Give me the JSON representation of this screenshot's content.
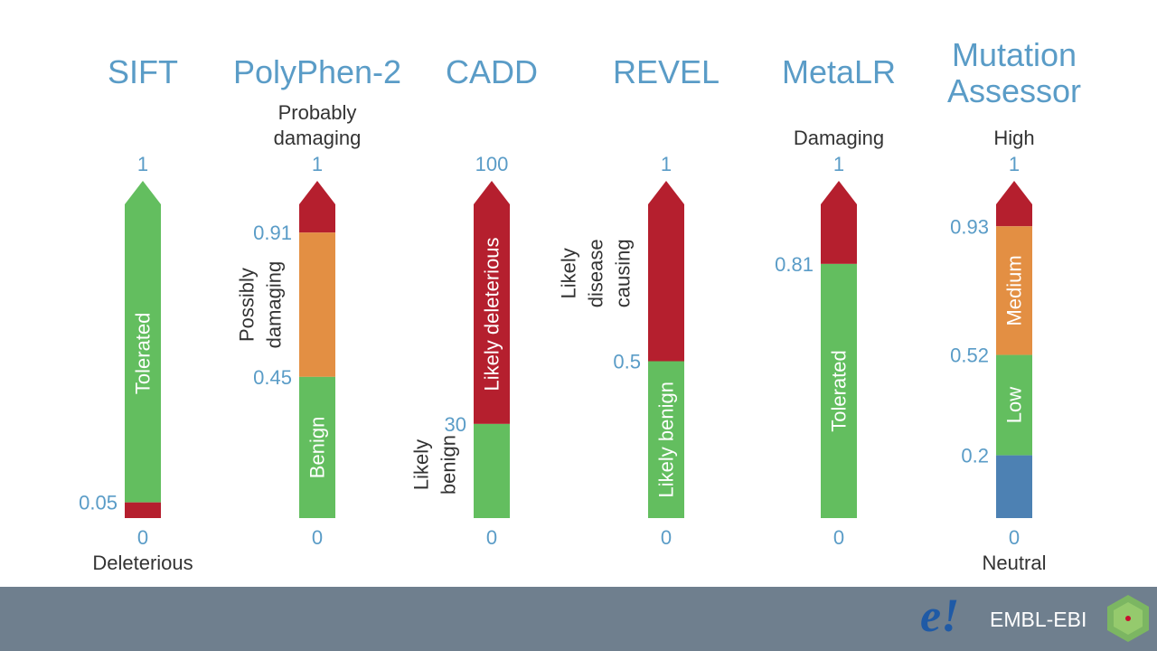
{
  "colors": {
    "title": "#5a9cc7",
    "tick": "#5a9cc7",
    "text": "#333333",
    "green": "#63be5f",
    "red": "#b51f2e",
    "orange": "#e38f43",
    "blue": "#4d81b3",
    "footer": "#6f7f8e"
  },
  "tools": [
    {
      "id": "sift",
      "title": [
        "SIFT"
      ],
      "top_label": [],
      "bottom_label": "Deleterious",
      "ticks": [
        {
          "value": 1,
          "label": "1"
        },
        {
          "value": 0.05,
          "label": "0.05"
        },
        {
          "value": 0,
          "label": "0"
        }
      ],
      "segments": [
        {
          "from": 0.05,
          "to": 1,
          "color": "green",
          "label": "Tolerated"
        },
        {
          "from": 0,
          "to": 0.05,
          "color": "red",
          "label": ""
        }
      ],
      "side_labels": []
    },
    {
      "id": "polyphen",
      "title": [
        "PolyPhen-2"
      ],
      "top_label": [
        "Probably",
        "damaging"
      ],
      "bottom_label": "",
      "ticks": [
        {
          "value": 1,
          "label": "1"
        },
        {
          "value": 0.91,
          "label": "0.91"
        },
        {
          "value": 0.45,
          "label": "0.45"
        },
        {
          "value": 0,
          "label": "0"
        }
      ],
      "segments": [
        {
          "from": 0.91,
          "to": 1,
          "color": "red",
          "label": ""
        },
        {
          "from": 0.45,
          "to": 0.91,
          "color": "orange",
          "label": ""
        },
        {
          "from": 0,
          "to": 0.45,
          "color": "green",
          "label": "Benign"
        }
      ],
      "side_labels": [
        {
          "lines": [
            "Possibly",
            "damaging"
          ],
          "center_value": 0.68
        }
      ]
    },
    {
      "id": "cadd",
      "title": [
        "CADD"
      ],
      "top_label": [],
      "bottom_label": "",
      "ticks": [
        {
          "value": 1,
          "label": "100"
        },
        {
          "value": 0.3,
          "label": "30"
        },
        {
          "value": 0,
          "label": "0"
        }
      ],
      "segments": [
        {
          "from": 0.3,
          "to": 1,
          "color": "red",
          "label": "Likely deleterious"
        },
        {
          "from": 0,
          "to": 0.3,
          "color": "green",
          "label": ""
        }
      ],
      "side_labels": [
        {
          "lines": [
            "Likely",
            "benign"
          ],
          "center_value": 0.17
        }
      ]
    },
    {
      "id": "revel",
      "title": [
        "REVEL"
      ],
      "top_label": [],
      "bottom_label": "",
      "ticks": [
        {
          "value": 1,
          "label": "1"
        },
        {
          "value": 0.5,
          "label": "0.5"
        },
        {
          "value": 0,
          "label": "0"
        }
      ],
      "segments": [
        {
          "from": 0.5,
          "to": 1,
          "color": "red",
          "label": ""
        },
        {
          "from": 0,
          "to": 0.5,
          "color": "green",
          "label": "Likely benign"
        }
      ],
      "side_labels": [
        {
          "lines": [
            "Likely",
            "disease",
            "causing"
          ],
          "center_value": 0.78
        }
      ]
    },
    {
      "id": "metalr",
      "title": [
        "MetaLR"
      ],
      "top_label": [
        "Damaging"
      ],
      "bottom_label": "",
      "ticks": [
        {
          "value": 1,
          "label": "1"
        },
        {
          "value": 0.81,
          "label": "0.81"
        },
        {
          "value": 0,
          "label": "0"
        }
      ],
      "segments": [
        {
          "from": 0.81,
          "to": 1,
          "color": "red",
          "label": ""
        },
        {
          "from": 0,
          "to": 0.81,
          "color": "green",
          "label": "Tolerated"
        }
      ],
      "side_labels": []
    },
    {
      "id": "mutation-assessor",
      "title": [
        "Mutation",
        "Assessor"
      ],
      "top_label": [
        "High"
      ],
      "bottom_label": "Neutral",
      "ticks": [
        {
          "value": 1,
          "label": "1"
        },
        {
          "value": 0.93,
          "label": "0.93"
        },
        {
          "value": 0.52,
          "label": "0.52"
        },
        {
          "value": 0.2,
          "label": "0.2"
        },
        {
          "value": 0,
          "label": "0"
        }
      ],
      "segments": [
        {
          "from": 0.93,
          "to": 1,
          "color": "red",
          "label": ""
        },
        {
          "from": 0.52,
          "to": 0.93,
          "color": "orange",
          "label": "Medium"
        },
        {
          "from": 0.2,
          "to": 0.52,
          "color": "green",
          "label": "Low"
        },
        {
          "from": 0,
          "to": 0.2,
          "color": "blue",
          "label": ""
        }
      ],
      "side_labels": []
    }
  ],
  "footer": {
    "logo_mark": "e!",
    "brand": "EMBL-EBI"
  }
}
